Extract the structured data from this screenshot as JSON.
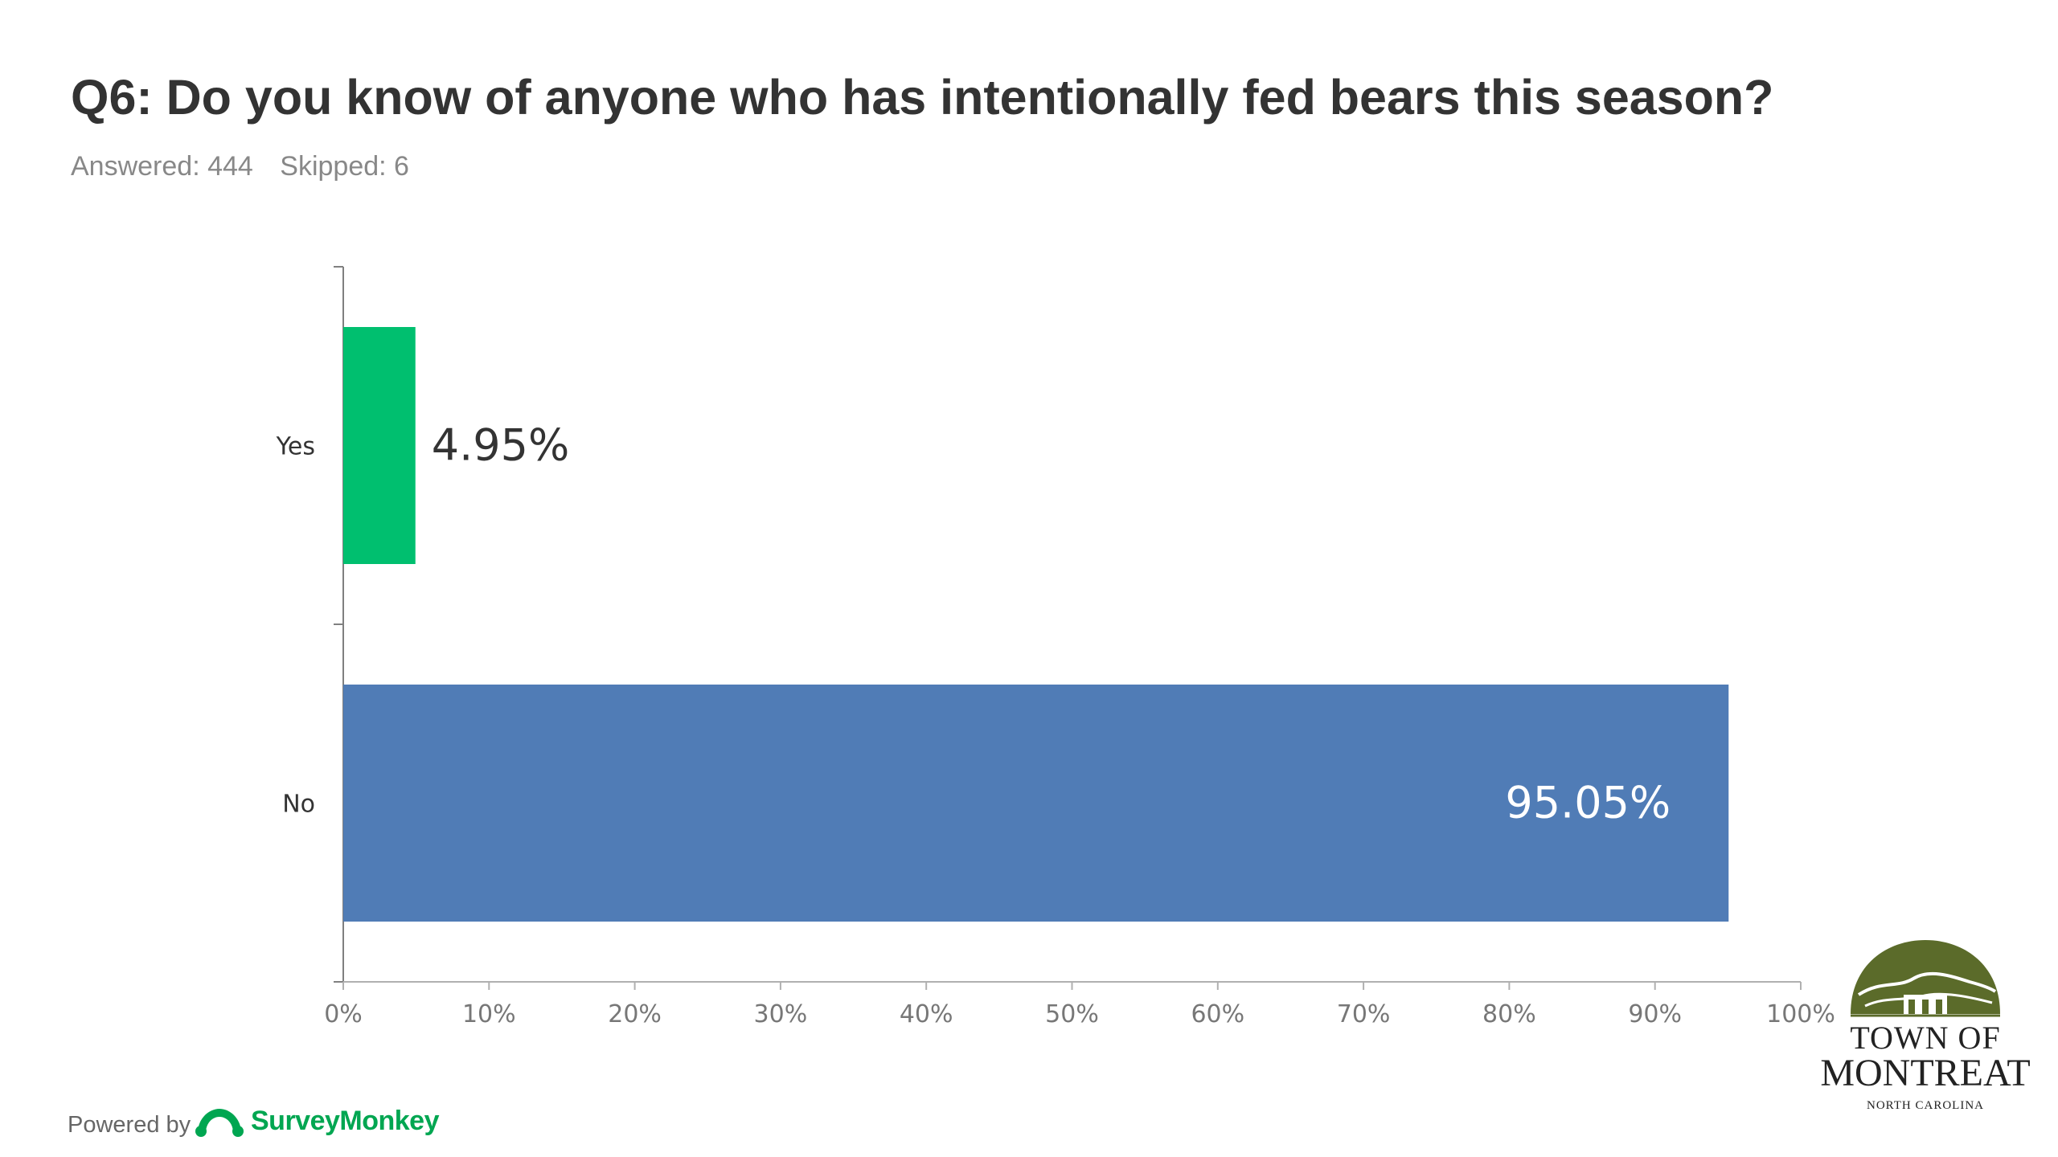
{
  "header": {
    "title": "Q6: Do you know of anyone who has intentionally fed bears this season?",
    "answered": "Answered: 444",
    "skipped": "Skipped: 6"
  },
  "chart_data": {
    "type": "bar",
    "orientation": "horizontal",
    "categories": [
      "Yes",
      "No"
    ],
    "values": [
      4.95,
      95.05
    ],
    "value_labels": [
      "4.95%",
      "95.05%"
    ],
    "colors": [
      "#00bf6f",
      "#507cb6"
    ],
    "title": "Q6: Do you know of anyone who has intentionally fed bears this season?",
    "xlabel": "",
    "ylabel": "",
    "xlim": [
      0,
      100
    ],
    "x_ticks": [
      "0%",
      "10%",
      "20%",
      "30%",
      "40%",
      "50%",
      "60%",
      "70%",
      "80%",
      "90%",
      "100%"
    ],
    "grid": false,
    "legend": "none"
  },
  "footer": {
    "powered_by": "Powered by",
    "brand": "SurveyMonkey",
    "brand_icon": "surveymonkey-logo-icon",
    "brand_color": "#00a651"
  },
  "logo": {
    "line1": "TOWN OF",
    "line2": "MONTREAT",
    "line3": "NORTH CAROLINA",
    "icon": "montreat-gate-logo-icon",
    "color": "#5b6b2a"
  }
}
